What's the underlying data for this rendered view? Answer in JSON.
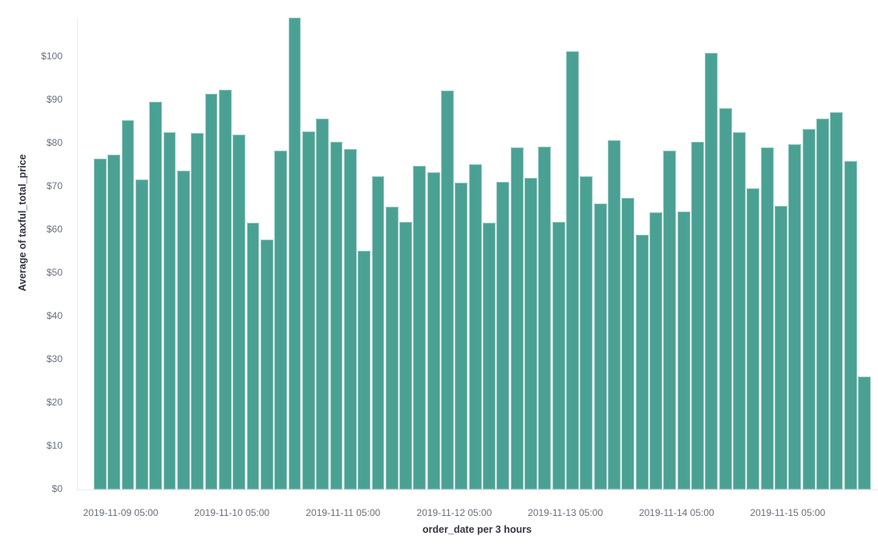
{
  "chart_data": {
    "type": "bar",
    "title": "",
    "xlabel": "order_date per 3 hours",
    "ylabel": "Average of taxful_total_price",
    "x_interval": "3 hours",
    "x": [
      "2019-11-08 23:00",
      "2019-11-09 02:00",
      "2019-11-09 05:00",
      "2019-11-09 08:00",
      "2019-11-09 11:00",
      "2019-11-09 14:00",
      "2019-11-09 17:00",
      "2019-11-09 20:00",
      "2019-11-09 23:00",
      "2019-11-10 02:00",
      "2019-11-10 05:00",
      "2019-11-10 08:00",
      "2019-11-10 11:00",
      "2019-11-10 14:00",
      "2019-11-10 17:00",
      "2019-11-10 20:00",
      "2019-11-10 23:00",
      "2019-11-11 02:00",
      "2019-11-11 05:00",
      "2019-11-11 08:00",
      "2019-11-11 11:00",
      "2019-11-11 14:00",
      "2019-11-11 17:00",
      "2019-11-11 20:00",
      "2019-11-11 23:00",
      "2019-11-12 02:00",
      "2019-11-12 05:00",
      "2019-11-12 08:00",
      "2019-11-12 11:00",
      "2019-11-12 14:00",
      "2019-11-12 17:00",
      "2019-11-12 20:00",
      "2019-11-12 23:00",
      "2019-11-13 02:00",
      "2019-11-13 05:00",
      "2019-11-13 08:00",
      "2019-11-13 11:00",
      "2019-11-13 14:00",
      "2019-11-13 17:00",
      "2019-11-13 20:00",
      "2019-11-13 23:00",
      "2019-11-14 02:00",
      "2019-11-14 05:00",
      "2019-11-14 08:00",
      "2019-11-14 11:00",
      "2019-11-14 14:00",
      "2019-11-14 17:00",
      "2019-11-14 20:00",
      "2019-11-14 23:00",
      "2019-11-15 02:00",
      "2019-11-15 05:00",
      "2019-11-15 08:00",
      "2019-11-15 11:00",
      "2019-11-15 14:00",
      "2019-11-15 17:00",
      "2019-11-15 20:00"
    ],
    "values": [
      76.5,
      77.4,
      85.4,
      71.7,
      89.6,
      82.6,
      73.7,
      82.3,
      91.5,
      92.3,
      82.0,
      61.6,
      57.7,
      78.2,
      109.0,
      82.8,
      85.6,
      80.4,
      78.7,
      55.2,
      72.3,
      65.4,
      61.9,
      74.7,
      73.3,
      92.1,
      70.8,
      75.2,
      61.6,
      71.1,
      79.1,
      72.0,
      79.3,
      61.9,
      101.3,
      72.4,
      66.1,
      80.7,
      67.4,
      58.8,
      64.1,
      78.3,
      64.3,
      80.4,
      100.8,
      88.1,
      82.5,
      69.6,
      79.1,
      65.6,
      79.8,
      83.2,
      85.7,
      87.1,
      75.9,
      26.1
    ],
    "x_tick_labels": [
      "2019-11-09 05:00",
      "2019-11-10 05:00",
      "2019-11-11 05:00",
      "2019-11-12 05:00",
      "2019-11-13 05:00",
      "2019-11-14 05:00",
      "2019-11-15 05:00"
    ],
    "y_ticks": [
      0,
      10,
      20,
      30,
      40,
      50,
      60,
      70,
      80,
      90,
      100
    ],
    "y_tick_labels": [
      "$0",
      "$10",
      "$20",
      "$30",
      "$40",
      "$50",
      "$60",
      "$70",
      "$80",
      "$90",
      "$100"
    ],
    "ylim": [
      0,
      109
    ],
    "grid": "off",
    "legend": "none",
    "colors": {
      "bar_fill": "#4aa193",
      "bar_stroke": "#9fcfc6",
      "axis_line": "#e7eaf1",
      "tick_label": "#69707d",
      "axis_title": "#343741",
      "background": "#ffffff"
    }
  }
}
